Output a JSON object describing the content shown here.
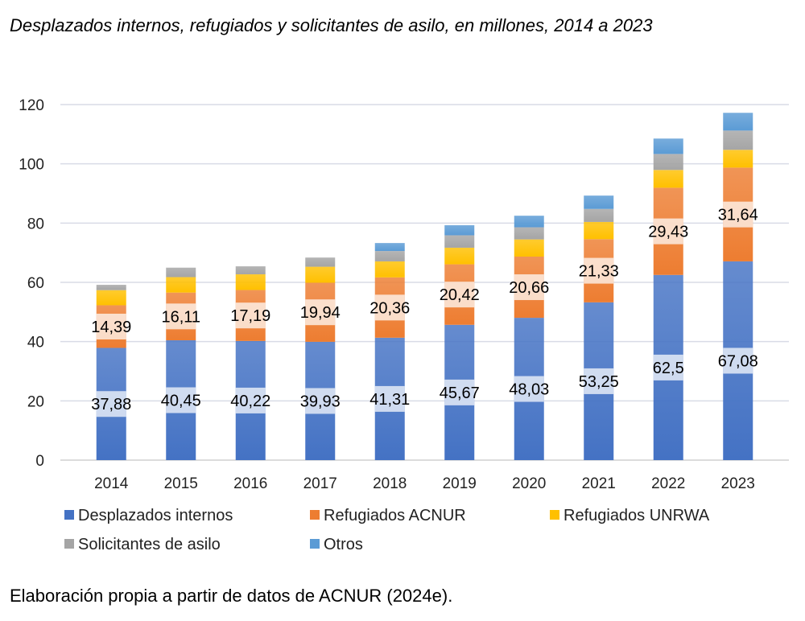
{
  "chart_data": {
    "type": "bar",
    "stacked": true,
    "title": "Desplazados internos, refugiados y solicitantes de asilo, en millones, 2014 a 2023",
    "xlabel": "",
    "ylabel": "",
    "ylim": [
      0,
      120
    ],
    "yticks": [
      0,
      20,
      40,
      60,
      80,
      100,
      120
    ],
    "grid": true,
    "legend_position": "bottom",
    "categories": [
      "2014",
      "2015",
      "2016",
      "2017",
      "2018",
      "2019",
      "2020",
      "2021",
      "2022",
      "2023"
    ],
    "series": [
      {
        "name": "Desplazados internos",
        "color": "#4472C4",
        "values": [
          37.88,
          40.45,
          40.22,
          39.93,
          41.31,
          45.67,
          48.03,
          53.25,
          62.5,
          67.08
        ],
        "labels": [
          "37,88",
          "40,45",
          "40,22",
          "39,93",
          "41,31",
          "45,67",
          "48,03",
          "53,25",
          "62,5",
          "67,08"
        ]
      },
      {
        "name": "Refugiados ACNUR",
        "color": "#ED7D31",
        "values": [
          14.39,
          16.11,
          17.19,
          19.94,
          20.36,
          20.42,
          20.66,
          21.33,
          29.43,
          31.64
        ],
        "labels": [
          "14,39",
          "16,11",
          "17,19",
          "19,94",
          "20,36",
          "20,42",
          "20,66",
          "21,33",
          "29,43",
          "31,64"
        ]
      },
      {
        "name": "Refugiados UNRWA",
        "color": "#FFC000",
        "values": [
          5.1,
          5.2,
          5.3,
          5.4,
          5.4,
          5.6,
          5.8,
          5.8,
          6.0,
          6.0
        ]
      },
      {
        "name": "Solicitantes de asilo",
        "color": "#A5A5A5",
        "values": [
          1.8,
          3.2,
          2.7,
          3.1,
          3.5,
          4.2,
          4.1,
          4.4,
          5.4,
          6.5
        ]
      },
      {
        "name": "Otros",
        "color": "#5B9BD5",
        "values": [
          0,
          0,
          0,
          0,
          2.7,
          3.4,
          3.9,
          4.5,
          5.2,
          6.0
        ]
      }
    ]
  },
  "source": "Elaboración propia a partir de datos de ACNUR (2024e)."
}
